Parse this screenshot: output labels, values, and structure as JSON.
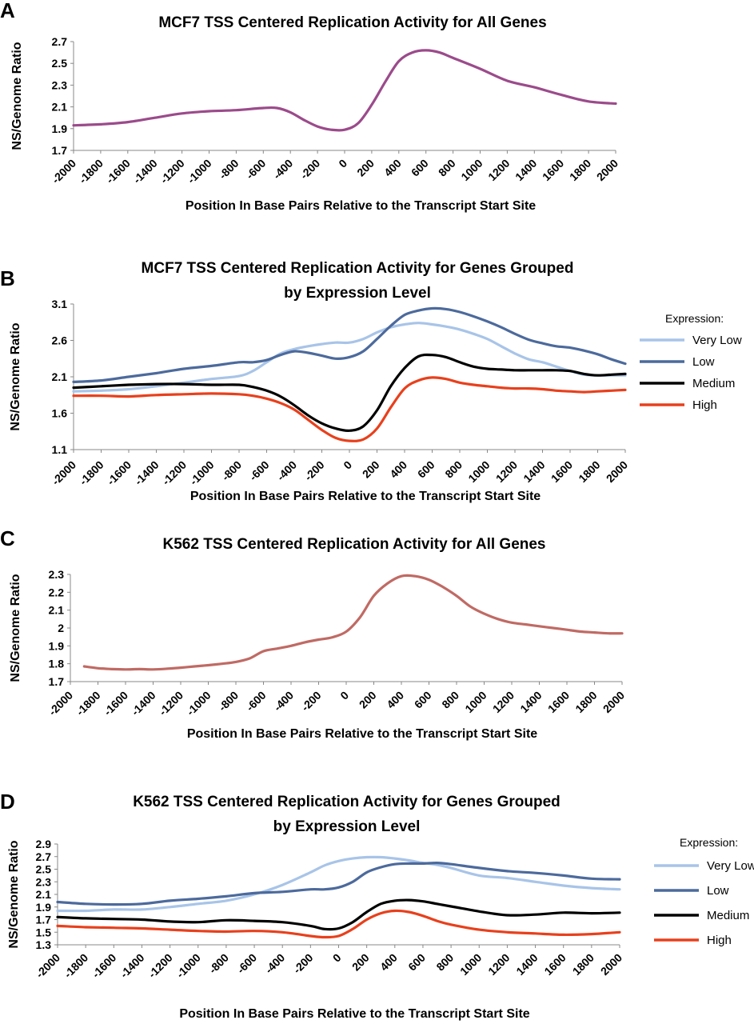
{
  "figure": {
    "panels": [
      "A",
      "B",
      "C",
      "D"
    ]
  },
  "chart_data": [
    {
      "panel": "A",
      "type": "line",
      "title": [
        "MCF7 TSS Centered Replication Activity for All Genes"
      ],
      "xlabel": "Position In Base Pairs Relative to the Transcript Start Site",
      "ylabel": "NS/Genome Ratio",
      "xlim": [
        -2000,
        2000
      ],
      "ylim": [
        1.7,
        2.7
      ],
      "x_ticks": [
        -2000,
        -1800,
        -1600,
        -1400,
        -1200,
        -1000,
        -800,
        -600,
        -400,
        -200,
        0,
        200,
        400,
        600,
        800,
        1000,
        1200,
        1400,
        1600,
        1800,
        2000
      ],
      "y_ticks": [
        "1.7",
        "1.9",
        "2.1",
        "2.3",
        "2.5",
        "2.7"
      ],
      "legend": null,
      "series": [
        {
          "name": "All Genes",
          "color": "#9b4b8b",
          "x": [
            -2000,
            -1800,
            -1600,
            -1400,
            -1200,
            -1000,
            -800,
            -600,
            -500,
            -400,
            -300,
            -200,
            -100,
            0,
            100,
            200,
            300,
            400,
            500,
            600,
            700,
            800,
            1000,
            1200,
            1400,
            1600,
            1800,
            2000
          ],
          "values": [
            1.93,
            1.94,
            1.96,
            2.0,
            2.04,
            2.06,
            2.07,
            2.09,
            2.09,
            2.05,
            1.98,
            1.92,
            1.89,
            1.89,
            1.95,
            2.12,
            2.33,
            2.52,
            2.6,
            2.62,
            2.6,
            2.55,
            2.45,
            2.34,
            2.28,
            2.21,
            2.15,
            2.13
          ]
        }
      ]
    },
    {
      "panel": "B",
      "type": "line",
      "title": [
        "MCF7 TSS Centered Replication Activity for Genes Grouped",
        "by Expression Level"
      ],
      "xlabel": "Position In Base Pairs Relative to the Transcript Start Site",
      "ylabel": "NS/Genome Ratio",
      "xlim": [
        -2000,
        2000
      ],
      "ylim": [
        1.1,
        3.1
      ],
      "x_ticks": [
        -2000,
        -1800,
        -1600,
        -1400,
        -1200,
        -1000,
        -800,
        -600,
        -400,
        -200,
        0,
        200,
        400,
        600,
        800,
        1000,
        1200,
        1400,
        1600,
        1800,
        2000
      ],
      "y_ticks": [
        "1.1",
        "1.6",
        "2.1",
        "2.6",
        "3.1"
      ],
      "legend": {
        "title": "Expression:",
        "placement": "right"
      },
      "series": [
        {
          "name": "Very Low",
          "color": "#a8c4e8",
          "x": [
            -2000,
            -1800,
            -1600,
            -1400,
            -1200,
            -1000,
            -800,
            -700,
            -600,
            -500,
            -400,
            -300,
            -200,
            -100,
            0,
            100,
            200,
            300,
            400,
            500,
            600,
            700,
            800,
            900,
            1000,
            1100,
            1200,
            1300,
            1400,
            1500,
            1600,
            1700,
            1800,
            1900,
            2000
          ],
          "values": [
            1.9,
            1.91,
            1.93,
            1.97,
            2.02,
            2.07,
            2.11,
            2.18,
            2.3,
            2.42,
            2.48,
            2.52,
            2.55,
            2.57,
            2.57,
            2.62,
            2.71,
            2.78,
            2.82,
            2.84,
            2.82,
            2.79,
            2.75,
            2.69,
            2.62,
            2.52,
            2.42,
            2.34,
            2.3,
            2.24,
            2.18,
            2.13,
            2.12,
            2.12,
            2.12
          ]
        },
        {
          "name": "Low",
          "color": "#4c6a9c",
          "x": [
            -2000,
            -1800,
            -1600,
            -1400,
            -1200,
            -1000,
            -800,
            -700,
            -600,
            -500,
            -400,
            -300,
            -200,
            -100,
            0,
            100,
            200,
            300,
            400,
            500,
            600,
            700,
            800,
            900,
            1000,
            1100,
            1200,
            1300,
            1400,
            1500,
            1600,
            1700,
            1800,
            1900,
            2000
          ],
          "values": [
            2.03,
            2.05,
            2.1,
            2.15,
            2.21,
            2.25,
            2.3,
            2.3,
            2.33,
            2.4,
            2.45,
            2.43,
            2.39,
            2.35,
            2.37,
            2.45,
            2.62,
            2.8,
            2.95,
            3.01,
            3.04,
            3.03,
            2.99,
            2.93,
            2.86,
            2.78,
            2.69,
            2.61,
            2.56,
            2.52,
            2.5,
            2.46,
            2.41,
            2.34,
            2.28
          ]
        },
        {
          "name": "Medium",
          "color": "#000000",
          "x": [
            -2000,
            -1800,
            -1600,
            -1400,
            -1200,
            -1000,
            -800,
            -700,
            -600,
            -500,
            -400,
            -300,
            -200,
            -100,
            0,
            100,
            200,
            300,
            400,
            500,
            600,
            700,
            800,
            900,
            1000,
            1100,
            1200,
            1300,
            1400,
            1500,
            1600,
            1700,
            1800,
            1900,
            2000
          ],
          "values": [
            1.95,
            1.97,
            1.99,
            2.0,
            2.0,
            1.99,
            1.99,
            1.96,
            1.91,
            1.83,
            1.71,
            1.57,
            1.46,
            1.39,
            1.36,
            1.42,
            1.64,
            1.97,
            2.22,
            2.38,
            2.4,
            2.37,
            2.3,
            2.24,
            2.21,
            2.2,
            2.19,
            2.19,
            2.19,
            2.19,
            2.18,
            2.14,
            2.12,
            2.13,
            2.14
          ]
        },
        {
          "name": "High",
          "color": "#e8401c",
          "x": [
            -2000,
            -1800,
            -1600,
            -1400,
            -1200,
            -1000,
            -800,
            -700,
            -600,
            -500,
            -400,
            -300,
            -200,
            -100,
            0,
            100,
            200,
            300,
            400,
            500,
            600,
            700,
            800,
            900,
            1000,
            1100,
            1200,
            1300,
            1400,
            1500,
            1600,
            1700,
            1800,
            1900,
            2000
          ],
          "values": [
            1.84,
            1.84,
            1.83,
            1.85,
            1.86,
            1.87,
            1.86,
            1.84,
            1.8,
            1.74,
            1.65,
            1.51,
            1.37,
            1.26,
            1.22,
            1.24,
            1.39,
            1.68,
            1.94,
            2.05,
            2.09,
            2.07,
            2.02,
            1.99,
            1.97,
            1.95,
            1.94,
            1.94,
            1.93,
            1.91,
            1.9,
            1.89,
            1.9,
            1.91,
            1.92
          ]
        }
      ]
    },
    {
      "panel": "C",
      "type": "line",
      "title": [
        "K562 TSS Centered Replication Activity for All Genes"
      ],
      "xlabel": "Position In Base Pairs Relative to the Transcript Start Site",
      "ylabel": "NS/Genome Ratio",
      "xlim": [
        -2000,
        2000
      ],
      "ylim": [
        1.7,
        2.3
      ],
      "x_ticks": [
        -2000,
        -1800,
        -1600,
        -1400,
        -1200,
        -1000,
        -800,
        -600,
        -400,
        -200,
        0,
        200,
        400,
        600,
        800,
        1000,
        1200,
        1400,
        1600,
        1800,
        2000
      ],
      "y_ticks": [
        "1.7",
        "1.8",
        "1.9",
        "2",
        "2.1",
        "2.2",
        "2.3"
      ],
      "legend": null,
      "series": [
        {
          "name": "All Genes",
          "color": "#c06a64",
          "x": [
            -1900,
            -1800,
            -1700,
            -1600,
            -1500,
            -1400,
            -1300,
            -1200,
            -1100,
            -1000,
            -900,
            -800,
            -700,
            -600,
            -500,
            -400,
            -300,
            -200,
            -100,
            0,
            100,
            200,
            300,
            400,
            500,
            600,
            700,
            800,
            900,
            1000,
            1100,
            1200,
            1300,
            1400,
            1500,
            1600,
            1700,
            1800,
            1900,
            2000
          ],
          "values": [
            1.785,
            1.775,
            1.77,
            1.768,
            1.77,
            1.768,
            1.772,
            1.778,
            1.785,
            1.792,
            1.8,
            1.81,
            1.83,
            1.87,
            1.885,
            1.9,
            1.92,
            1.935,
            1.948,
            1.98,
            2.06,
            2.18,
            2.25,
            2.29,
            2.29,
            2.27,
            2.23,
            2.18,
            2.12,
            2.08,
            2.05,
            2.03,
            2.02,
            2.01,
            2.0,
            1.99,
            1.98,
            1.975,
            1.97,
            1.97
          ]
        }
      ]
    },
    {
      "panel": "D",
      "type": "line",
      "title": [
        "K562 TSS Centered Replication Activity for Genes Grouped",
        "by Expression Level"
      ],
      "xlabel": "Position In Base Pairs Relative to the Transcript Start Site",
      "ylabel": "NS/Genome Ratio",
      "xlim": [
        -2000,
        2000
      ],
      "ylim": [
        1.3,
        2.9
      ],
      "x_ticks": [
        -2000,
        -1800,
        -1600,
        -1400,
        -1200,
        -1000,
        -800,
        -600,
        -400,
        -200,
        0,
        200,
        400,
        600,
        800,
        1000,
        1200,
        1400,
        1600,
        1800,
        2000
      ],
      "y_ticks": [
        "1.3",
        "1.5",
        "1.7",
        "1.9",
        "2.1",
        "2.3",
        "2.5",
        "2.7",
        "2.9"
      ],
      "legend": {
        "title": "Expression:",
        "placement": "right"
      },
      "series": [
        {
          "name": "Very Low",
          "color": "#a8c4e8",
          "x": [
            -2000,
            -1800,
            -1600,
            -1400,
            -1200,
            -1000,
            -800,
            -600,
            -400,
            -200,
            -100,
            0,
            100,
            200,
            300,
            400,
            500,
            600,
            700,
            800,
            1000,
            1200,
            1400,
            1600,
            1800,
            2000
          ],
          "values": [
            1.84,
            1.84,
            1.86,
            1.86,
            1.9,
            1.95,
            2.0,
            2.1,
            2.25,
            2.45,
            2.56,
            2.63,
            2.67,
            2.69,
            2.69,
            2.67,
            2.64,
            2.6,
            2.57,
            2.52,
            2.4,
            2.36,
            2.3,
            2.24,
            2.2,
            2.18
          ]
        },
        {
          "name": "Low",
          "color": "#4c6a9c",
          "x": [
            -2000,
            -1800,
            -1600,
            -1400,
            -1200,
            -1000,
            -800,
            -600,
            -400,
            -200,
            -100,
            0,
            100,
            200,
            300,
            400,
            500,
            600,
            700,
            800,
            1000,
            1200,
            1400,
            1600,
            1800,
            2000
          ],
          "values": [
            1.98,
            1.95,
            1.94,
            1.95,
            2.0,
            2.03,
            2.07,
            2.12,
            2.14,
            2.18,
            2.18,
            2.21,
            2.3,
            2.45,
            2.53,
            2.58,
            2.59,
            2.59,
            2.6,
            2.58,
            2.52,
            2.47,
            2.44,
            2.4,
            2.35,
            2.34
          ]
        },
        {
          "name": "Medium",
          "color": "#000000",
          "x": [
            -2000,
            -1800,
            -1600,
            -1400,
            -1200,
            -1000,
            -800,
            -600,
            -400,
            -200,
            -100,
            0,
            100,
            200,
            300,
            400,
            500,
            600,
            700,
            800,
            1000,
            1200,
            1400,
            1600,
            1800,
            2000
          ],
          "values": [
            1.74,
            1.72,
            1.71,
            1.7,
            1.67,
            1.66,
            1.69,
            1.68,
            1.66,
            1.6,
            1.55,
            1.56,
            1.66,
            1.82,
            1.95,
            2.0,
            2.01,
            1.99,
            1.95,
            1.91,
            1.83,
            1.77,
            1.78,
            1.81,
            1.8,
            1.81
          ]
        },
        {
          "name": "High",
          "color": "#e8401c",
          "x": [
            -2000,
            -1800,
            -1600,
            -1400,
            -1200,
            -1000,
            -800,
            -600,
            -400,
            -200,
            -100,
            0,
            100,
            200,
            300,
            400,
            500,
            600,
            700,
            800,
            1000,
            1200,
            1400,
            1600,
            1800,
            2000
          ],
          "values": [
            1.6,
            1.58,
            1.57,
            1.56,
            1.54,
            1.52,
            1.51,
            1.52,
            1.5,
            1.44,
            1.42,
            1.44,
            1.55,
            1.7,
            1.8,
            1.84,
            1.82,
            1.76,
            1.68,
            1.62,
            1.54,
            1.5,
            1.48,
            1.46,
            1.47,
            1.5
          ]
        }
      ]
    }
  ]
}
